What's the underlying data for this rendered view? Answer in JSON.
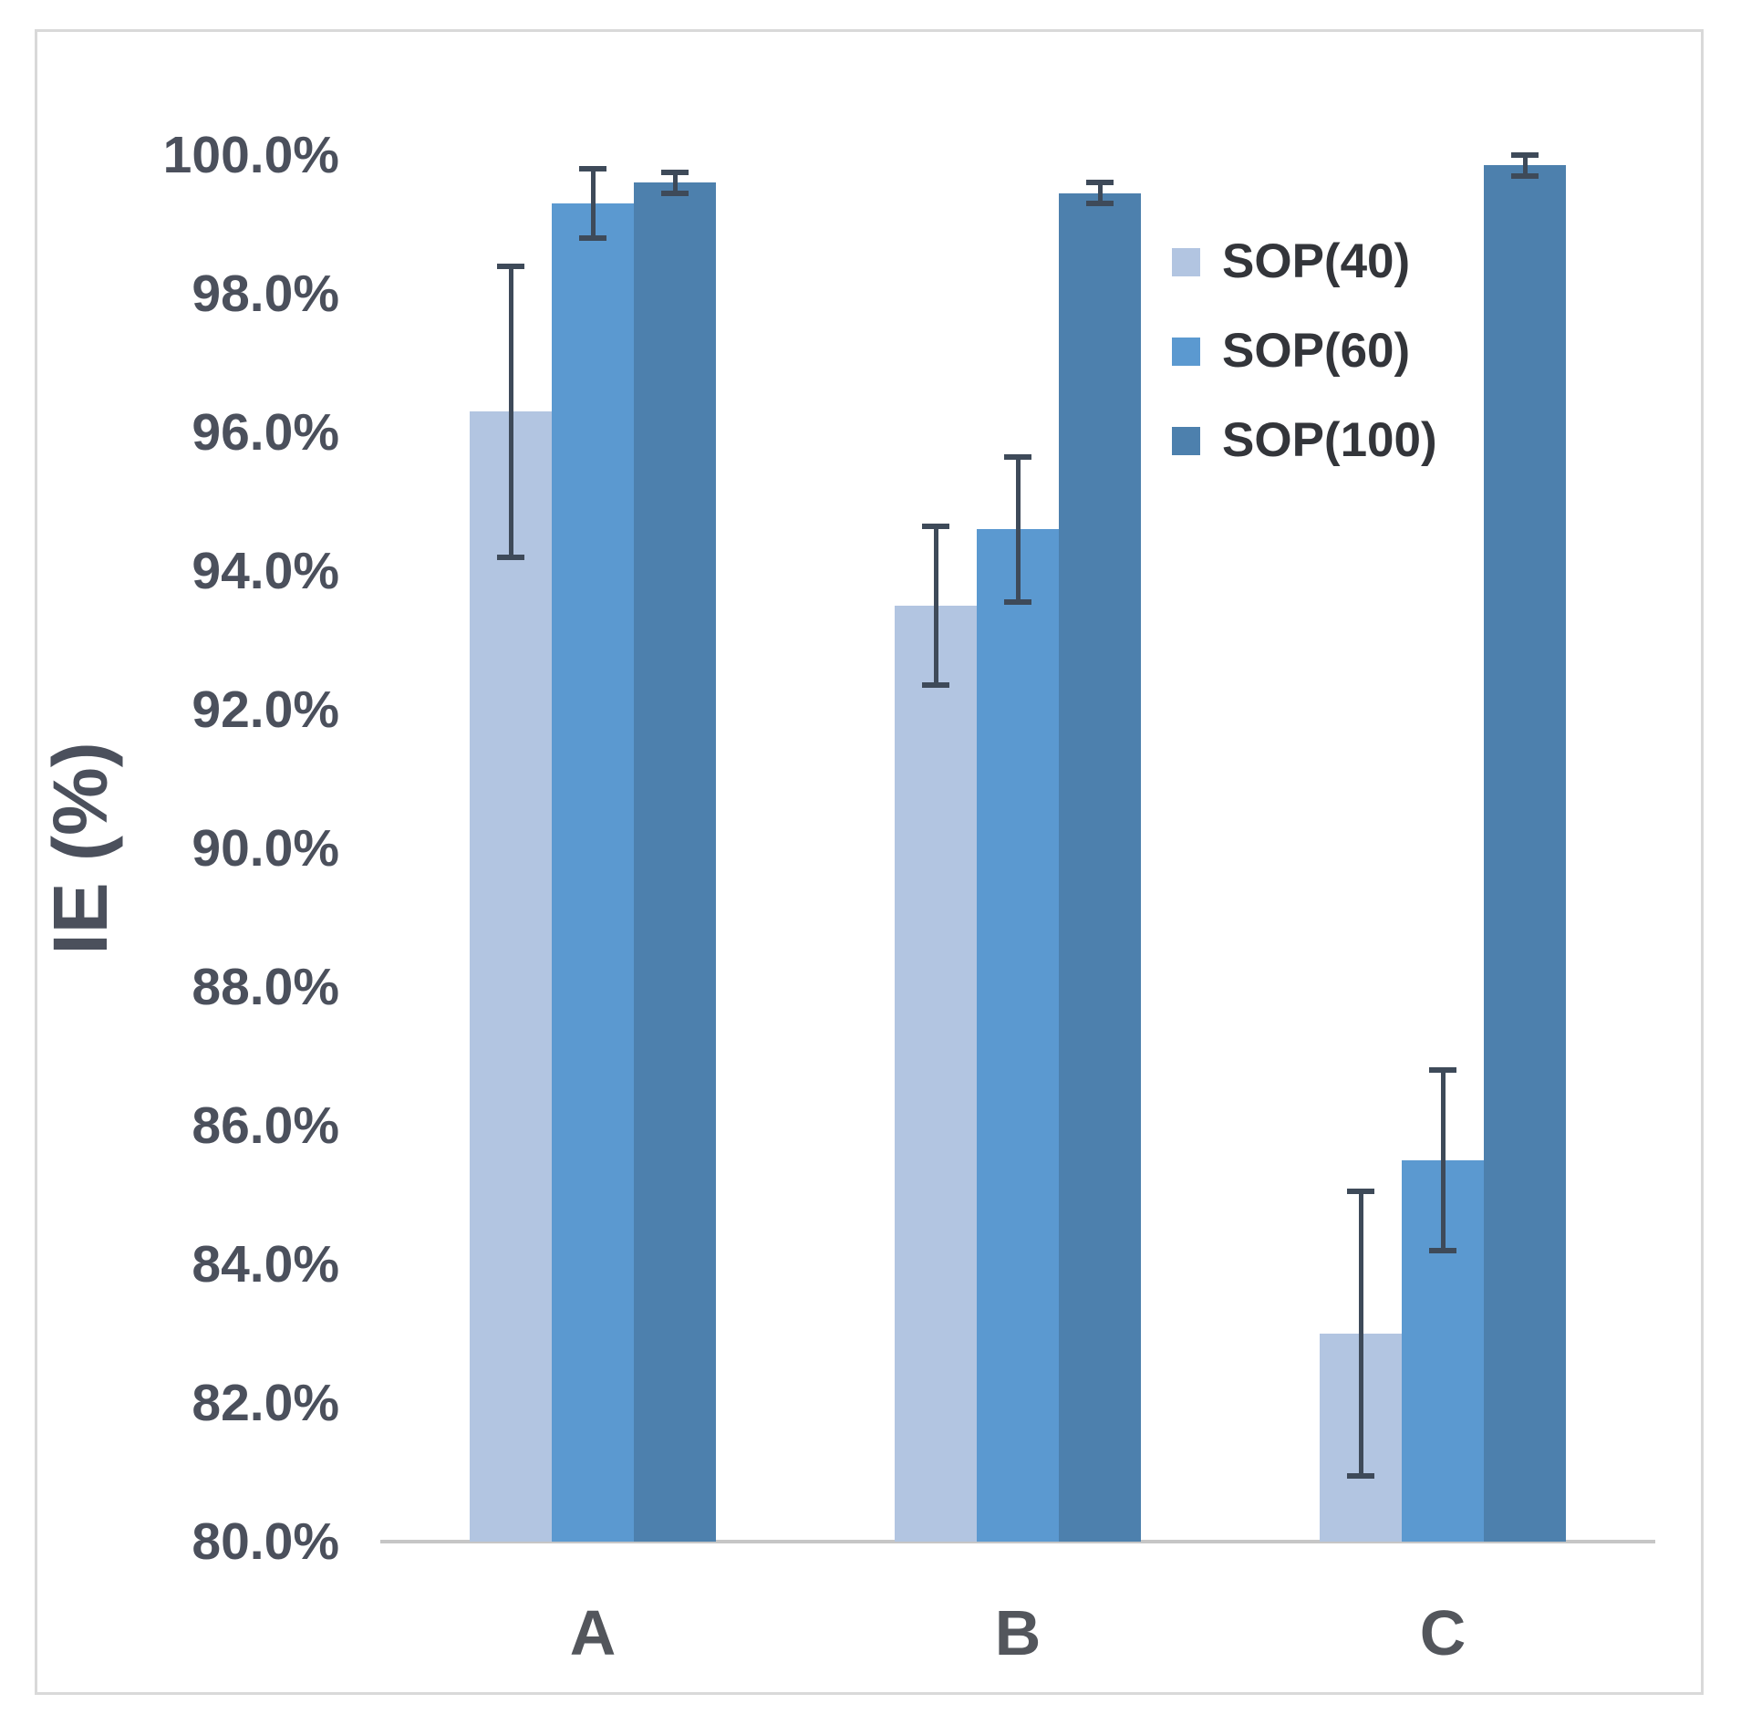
{
  "figure": {
    "y_axis_title": "IE (%)",
    "tick_labels": [
      "100.0%",
      "98.0%",
      "96.0%",
      "94.0%",
      "92.0%",
      "90.0%",
      "88.0%",
      "86.0%",
      "84.0%",
      "82.0%",
      "80.0%"
    ],
    "tick_values": [
      100,
      98,
      96,
      94,
      92,
      90,
      88,
      86,
      84,
      82,
      80
    ]
  },
  "legend": {
    "items": [
      {
        "label": "SOP(40)",
        "color": "#b2c5e1"
      },
      {
        "label": "SOP(60)",
        "color": "#5b99d0"
      },
      {
        "label": "SOP(100)",
        "color": "#4d80ad"
      }
    ]
  },
  "chart_data": {
    "type": "bar",
    "categories": [
      "A",
      "B",
      "C"
    ],
    "series": [
      {
        "name": "SOP(40)",
        "color": "#b2c5e1",
        "values": [
          96.3,
          93.5,
          83.0
        ],
        "errors": [
          2.1,
          1.15,
          2.05
        ]
      },
      {
        "name": "SOP(60)",
        "color": "#5b99d0",
        "values": [
          99.3,
          94.6,
          85.5
        ],
        "errors": [
          0.5,
          1.05,
          1.3
        ]
      },
      {
        "name": "SOP(100)",
        "color": "#4d80ad",
        "values": [
          99.6,
          99.45,
          99.85
        ],
        "errors": [
          0.15,
          0.15,
          0.15
        ]
      }
    ],
    "title": "",
    "xlabel": "",
    "ylabel": "IE (%)",
    "ylim": [
      80,
      100
    ],
    "ytick_step": 2,
    "ytick_format": "percent_one_decimal",
    "grid": false,
    "error_bars": true,
    "legend_position": "upper-right-inside"
  }
}
